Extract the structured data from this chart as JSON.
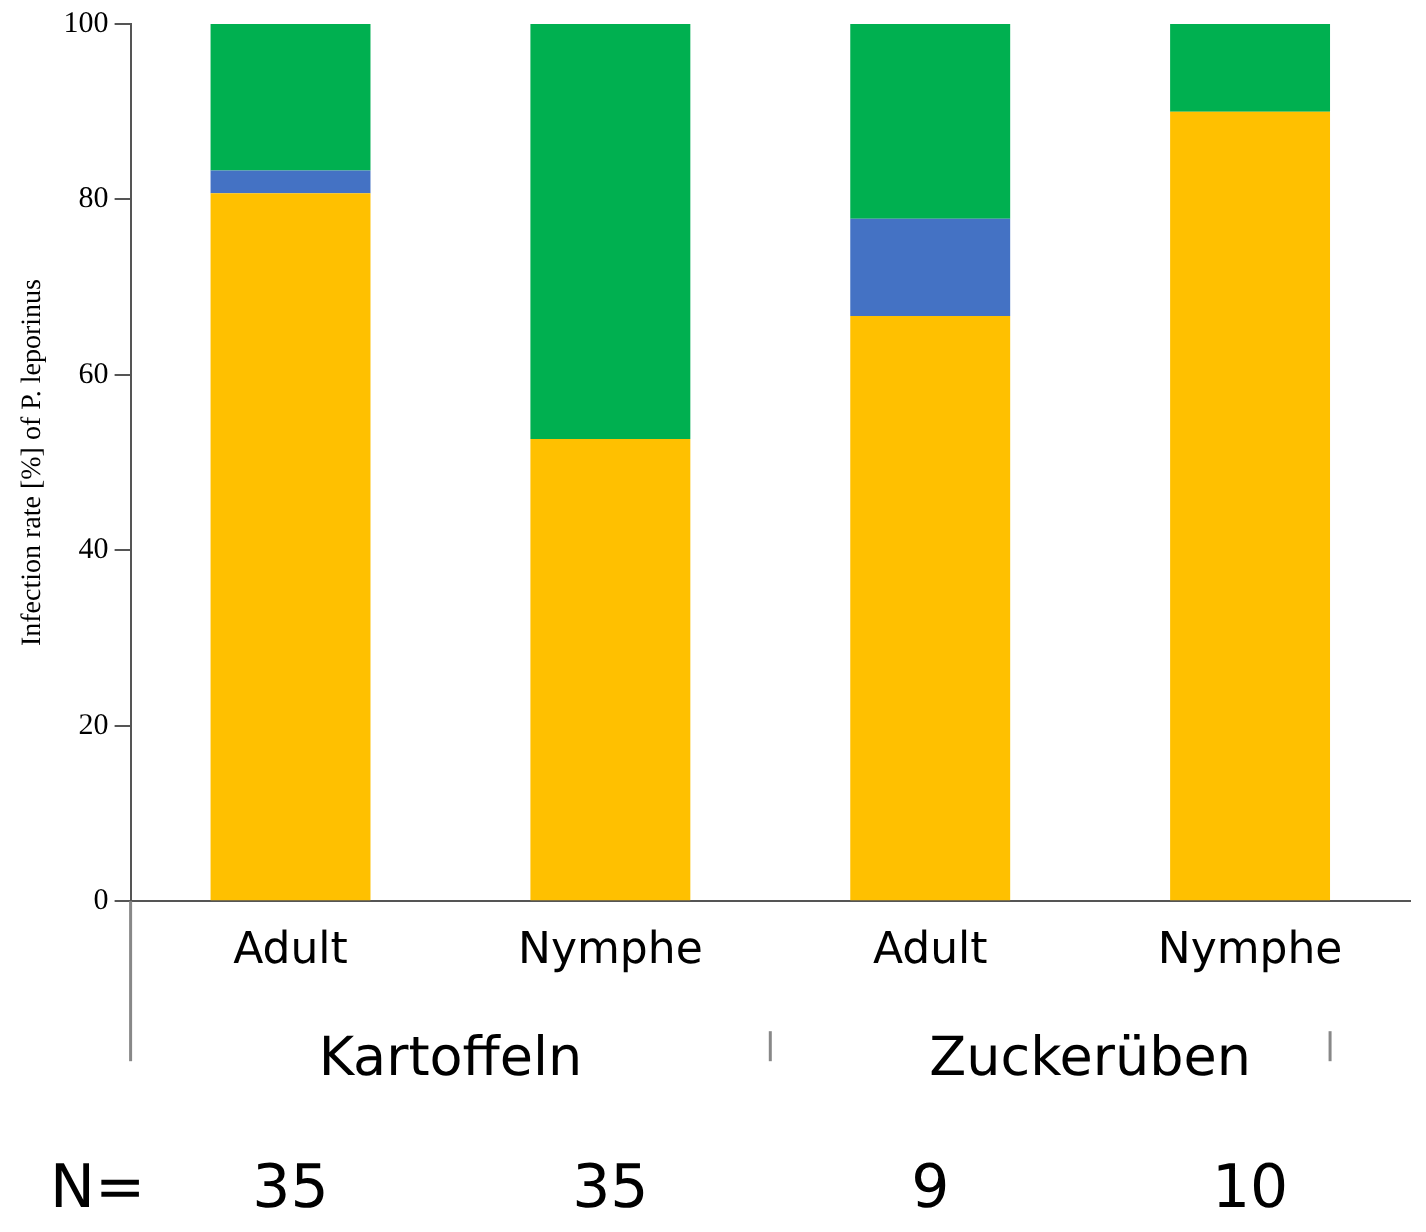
{
  "chart_data": {
    "type": "bar",
    "stacked": true,
    "ylabel": "Infection rate [%] of P. leporinus",
    "categories": [
      "Adult",
      "Nymphe",
      "Adult",
      "Nymphe"
    ],
    "series": [
      {
        "color": "#ffc000",
        "values": [
          80.7,
          52.7,
          66.7,
          90
        ]
      },
      {
        "color": "#4472c4",
        "values": [
          2.6,
          null,
          11.1,
          null
        ]
      },
      {
        "color": "#00b050",
        "values": [
          16.7,
          47.3,
          22.2,
          10
        ]
      }
    ],
    "ylim": [
      0,
      100
    ],
    "yticks": [
      0,
      20,
      40,
      60,
      80,
      100
    ],
    "grid": false,
    "legend": false,
    "annotations": [
      "Kartoffeln",
      "Zuckerüben",
      "N=",
      "35",
      "35",
      "9",
      "10"
    ]
  }
}
